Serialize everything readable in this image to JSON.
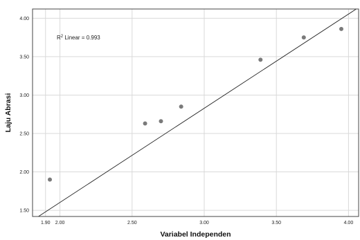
{
  "chart_data": {
    "type": "scatter",
    "xlabel": "Variabel Independen",
    "ylabel": "Laju Abrasi",
    "xlim": [
      1.81,
      4.07
    ],
    "ylim": [
      1.42,
      4.12
    ],
    "x_ticks": [
      1.9,
      2.0,
      2.5,
      3.0,
      3.5,
      4.0
    ],
    "x_tick_labels": [
      "1.90",
      "2.00",
      "2.50",
      "3.00",
      "3.50",
      "4.00"
    ],
    "y_ticks": [
      1.5,
      2.0,
      2.5,
      3.0,
      3.5,
      4.0
    ],
    "y_tick_labels": [
      "1.50",
      "2.00",
      "2.50",
      "3.00",
      "3.50",
      "4.00"
    ],
    "grid": true,
    "points": [
      {
        "x": 1.93,
        "y": 1.9
      },
      {
        "x": 2.59,
        "y": 2.63
      },
      {
        "x": 2.7,
        "y": 2.66
      },
      {
        "x": 2.84,
        "y": 2.85
      },
      {
        "x": 3.39,
        "y": 3.46
      },
      {
        "x": 3.69,
        "y": 3.75
      },
      {
        "x": 3.95,
        "y": 3.86
      }
    ],
    "fit_line": {
      "x": [
        1.81,
        4.07
      ],
      "y": [
        1.37,
        4.14
      ]
    },
    "annotation": {
      "prefix": "R",
      "superscript": "2",
      "text": " Linear = 0.993"
    },
    "colors": {
      "points": "#7a7a7a",
      "line": "#222222",
      "grid": "#d9d9d9",
      "frame": "#444444"
    }
  }
}
